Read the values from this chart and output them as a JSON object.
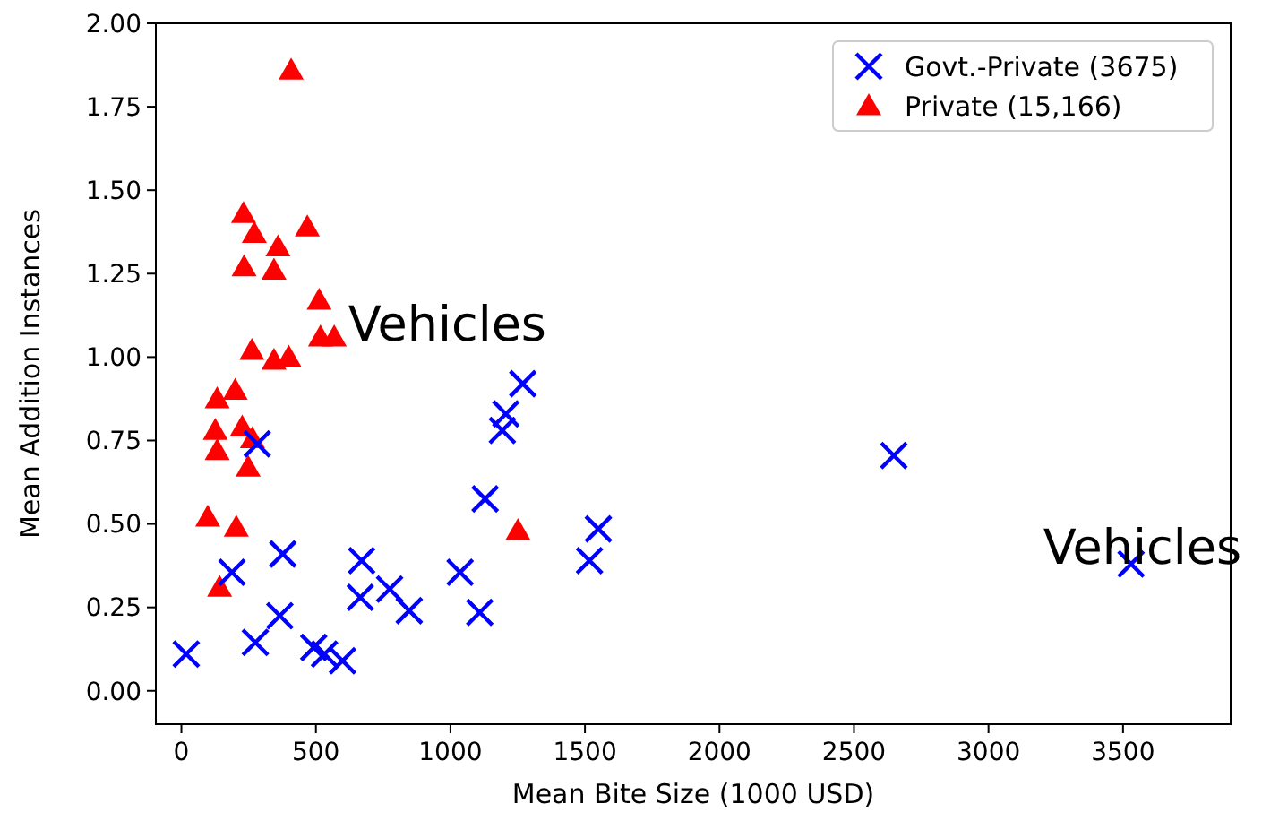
{
  "chart_data": {
    "type": "scatter",
    "xlabel": "Mean Bite Size (1000 USD)",
    "ylabel": "Mean Addition Instances",
    "xlim": [
      -95,
      3900
    ],
    "ylim": [
      -0.1,
      2.0
    ],
    "xticks": [
      0,
      500,
      1000,
      1500,
      2000,
      2500,
      3000,
      3500
    ],
    "yticks": [
      {
        "value": 0,
        "label": "0.00"
      },
      {
        "value": 0.25,
        "label": "0.25"
      },
      {
        "value": 0.5,
        "label": "0.50"
      },
      {
        "value": 0.75,
        "label": "0.75"
      },
      {
        "value": 1,
        "label": "1.00"
      },
      {
        "value": 1.25,
        "label": "1.25"
      },
      {
        "value": 1.5,
        "label": "1.50"
      },
      {
        "value": 1.75,
        "label": "1.75"
      },
      {
        "value": 2,
        "label": "2.00"
      }
    ],
    "grid": false,
    "legend": "top right",
    "series": [
      {
        "name": "Govt.-Private (3675)",
        "color": "#0000ff",
        "marker": "cross",
        "x": [
          282,
          1269,
          1206,
          1193,
          1129,
          188,
          377,
          670,
          665,
          774,
          847,
          1036,
          1109,
          18,
          275,
          366,
          492,
          532,
          599,
          1550,
          1517,
          2648,
          3530
        ],
        "values": [
          0.74,
          0.92,
          0.83,
          0.78,
          0.575,
          0.355,
          0.41,
          0.39,
          0.28,
          0.305,
          0.24,
          0.355,
          0.235,
          0.11,
          0.145,
          0.225,
          0.13,
          0.11,
          0.09,
          0.485,
          0.39,
          0.705,
          0.38
        ]
      },
      {
        "name": "Private (15,166)",
        "color": "#ff0000",
        "marker": "triangle",
        "x": [
          408,
          231,
          271,
          468,
          359,
          233,
          344,
          512,
          517,
          568,
          262,
          344,
          399,
          133,
          200,
          126,
          226,
          133,
          264,
          248,
          98,
          204,
          142,
          1251
        ],
        "values": [
          1.86,
          1.43,
          1.37,
          1.39,
          1.33,
          1.27,
          1.26,
          1.17,
          1.06,
          1.06,
          1.02,
          0.99,
          1.0,
          0.875,
          0.9,
          0.78,
          0.79,
          0.72,
          0.755,
          0.67,
          0.52,
          0.49,
          0.31,
          0.48
        ]
      }
    ],
    "annotations": [
      {
        "text": "Vehicles",
        "x": 620,
        "y": 1.05
      },
      {
        "text": "Vehicles",
        "x": 3530,
        "y": 0.38
      }
    ]
  }
}
